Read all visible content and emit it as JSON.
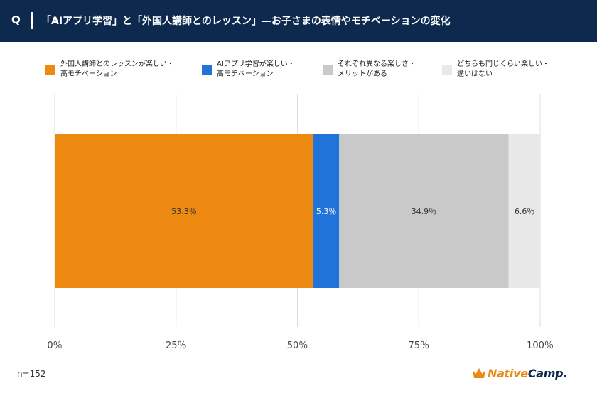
{
  "header": {
    "q": "Q",
    "title": "「AIアプリ学習」と「外国人講師とのレッスン」―お子さまの表情やモチベーションの変化"
  },
  "chart_data": {
    "type": "bar",
    "orientation": "horizontal-stacked",
    "series": [
      {
        "name_lines": [
          "外国人講師とのレッスンが楽しい・",
          "高モチベーション"
        ],
        "value": 53.3,
        "label": "53.3％",
        "color": "#ee8a12",
        "label_color": "#333333"
      },
      {
        "name_lines": [
          "AIアプリ学習が楽しい・",
          "高モチベーション"
        ],
        "value": 5.3,
        "label": "5.3％",
        "color": "#1f73d9",
        "label_color": "#ffffff"
      },
      {
        "name_lines": [
          "それぞれ異なる楽しさ・",
          "メリットがある"
        ],
        "value": 34.9,
        "label": "34.9％",
        "color": "#c9c9c9",
        "label_color": "#333333"
      },
      {
        "name_lines": [
          "どちらも同じくらい楽しい・",
          "違いはない"
        ],
        "value": 6.6,
        "label": "6.6％",
        "color": "#e8e8e8",
        "label_color": "#333333"
      }
    ],
    "xlim": [
      0,
      100
    ],
    "x_ticks": [
      0,
      25,
      50,
      75,
      100
    ],
    "x_tick_labels": [
      "0％",
      "25％",
      "50％",
      "75％",
      "100％"
    ],
    "legend_position": "top",
    "grid": true
  },
  "footer": {
    "n_label": "n=152",
    "logo_part1": "Native",
    "logo_part2": "Camp."
  }
}
